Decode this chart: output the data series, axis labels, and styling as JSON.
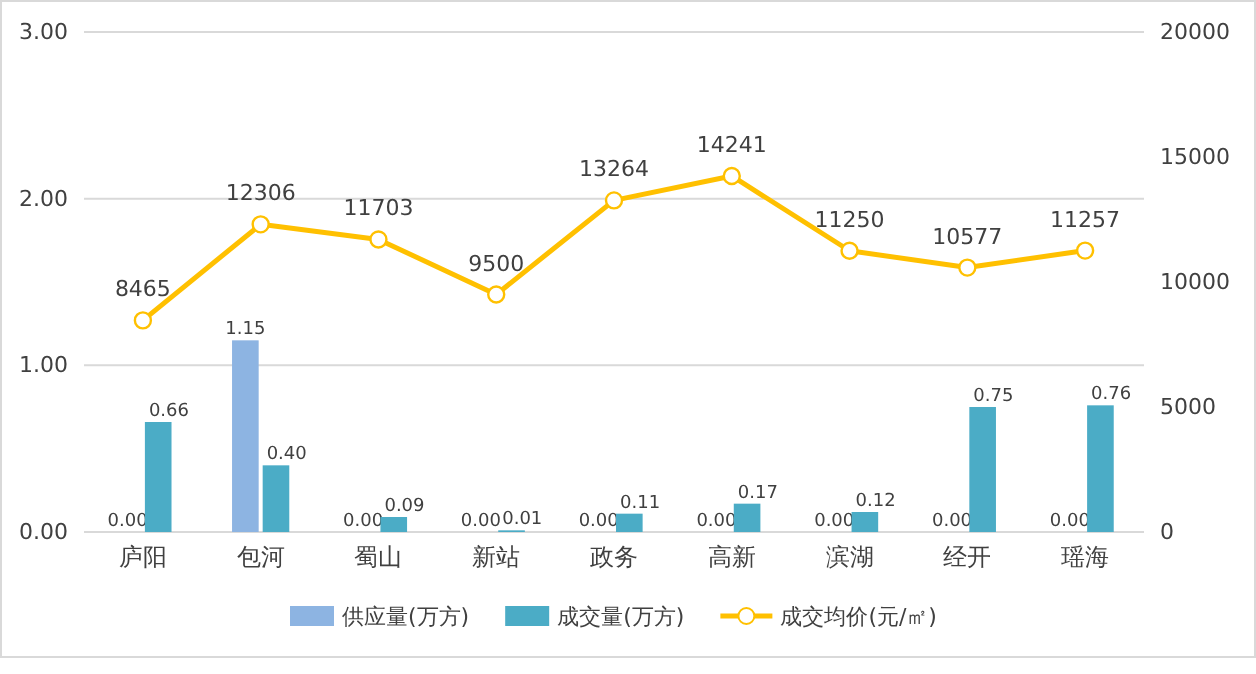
{
  "chart_data": {
    "type": "bar",
    "categories": [
      "庐阳",
      "包河",
      "蜀山",
      "新站",
      "政务",
      "高新",
      "滨湖",
      "经开",
      "瑶海"
    ],
    "series": [
      {
        "name": "供应量(万方)",
        "color": "#8db4e2",
        "values": [
          0,
          1.15,
          0,
          0,
          0,
          0,
          0,
          0,
          0
        ],
        "value_labels": [
          "0.00",
          "1.15",
          "0.00",
          "0.00",
          "0.00",
          "0.00",
          "0.00",
          "0.00",
          "0.00"
        ]
      },
      {
        "name": "成交量(万方)",
        "color": "#4bacc6",
        "values": [
          0.66,
          0.4,
          0.09,
          0.01,
          0.11,
          0.17,
          0.12,
          0.75,
          0.76
        ],
        "value_labels": [
          "0.66",
          "0.40",
          "0.09",
          "0.01",
          "0.11",
          "0.17",
          "0.12",
          "0.75",
          "0.76"
        ]
      },
      {
        "name": "成交均价(元/㎡)",
        "type": "line",
        "axis": "y2",
        "color": "#ffc000",
        "marker": "circle",
        "values": [
          8465,
          12306,
          11703,
          9500,
          13264,
          14241,
          11250,
          10577,
          11257
        ],
        "value_labels": [
          "8465",
          "12306",
          "11703",
          "9500",
          "13264",
          "14241",
          "11250",
          "10577",
          "11257"
        ]
      }
    ],
    "ylim": [
      0,
      3
    ],
    "yticks": [
      {
        "value": 0,
        "label": "0.00"
      },
      {
        "value": 1,
        "label": "1.00"
      },
      {
        "value": 2,
        "label": "2.00"
      },
      {
        "value": 3,
        "label": "3.00"
      }
    ],
    "y2lim": [
      0,
      20000
    ],
    "y2ticks": [
      0,
      5000,
      10000,
      15000,
      20000
    ],
    "grid": "y",
    "legend": "bottom"
  }
}
